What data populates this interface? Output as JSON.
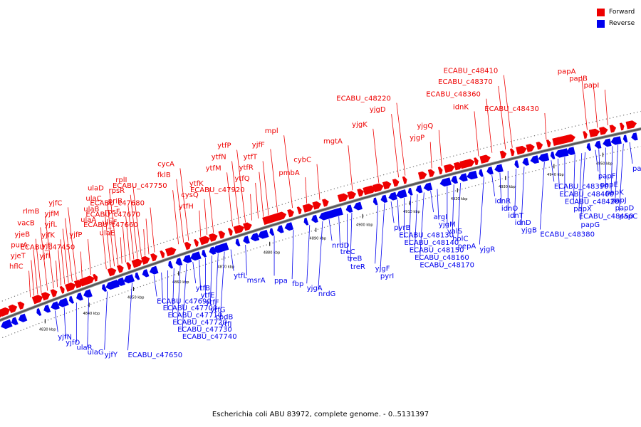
{
  "caption": "Escherichia coli ABU 83972, complete genome. - 0..5131397",
  "legend": {
    "forward": {
      "label": "Forward",
      "color": "#ee0000"
    },
    "reverse": {
      "label": "Reverse",
      "color": "#0000ee"
    }
  },
  "ticks": [
    "4830 kbp",
    "4840 kbp",
    "4850 kbp",
    "4860 kbp",
    "4870 kbp",
    "4880 kbp",
    "4890 kbp",
    "4900 kbp",
    "4910 kbp",
    "4920 kbp",
    "4930 kbp",
    "4940 kbp",
    "4950 kbp"
  ],
  "forward_genes": [
    {
      "name": "hflC",
      "t": 0.062
    },
    {
      "name": "yjeT",
      "t": 0.068
    },
    {
      "name": "purA",
      "t": 0.074
    },
    {
      "name": "yjeB",
      "t": 0.08
    },
    {
      "name": "vacB",
      "t": 0.09
    },
    {
      "name": "rlmB",
      "t": 0.1
    },
    {
      "name": "yjfI",
      "t": 0.106
    },
    {
      "name": "yjfJ",
      "t": 0.112
    },
    {
      "name": "yjfK",
      "t": 0.118
    },
    {
      "name": "yjfL",
      "t": 0.124
    },
    {
      "name": "yjfM",
      "t": 0.13
    },
    {
      "name": "yjfC",
      "t": 0.137
    },
    {
      "name": "ECABU_c47450",
      "t": 0.146
    },
    {
      "name": "yjfP",
      "t": 0.16
    },
    {
      "name": "ulaA",
      "t": 0.185
    },
    {
      "name": "ulaB",
      "t": 0.192
    },
    {
      "name": "ulaC",
      "t": 0.198
    },
    {
      "name": "ulaD",
      "t": 0.204
    },
    {
      "name": "ulaE",
      "t": 0.21
    },
    {
      "name": "ulaF",
      "t": 0.216
    },
    {
      "name": "rpsF",
      "t": 0.223
    },
    {
      "name": "priB",
      "t": 0.229
    },
    {
      "name": "rpsR",
      "t": 0.235
    },
    {
      "name": "rplI",
      "t": 0.241
    },
    {
      "name": "ECABU_c47660",
      "t": 0.247
    },
    {
      "name": "ECABU_c47670",
      "t": 0.253
    },
    {
      "name": "ECABU_c47680",
      "t": 0.262
    },
    {
      "name": "ECABU_c47750",
      "t": 0.3
    },
    {
      "name": "fklB",
      "t": 0.308
    },
    {
      "name": "cycA",
      "t": 0.316
    },
    {
      "name": "ytfH",
      "t": 0.335
    },
    {
      "name": "cysQ",
      "t": 0.345
    },
    {
      "name": "ytfK",
      "t": 0.355
    },
    {
      "name": "ytfM",
      "t": 0.385
    },
    {
      "name": "ytfN",
      "t": 0.395
    },
    {
      "name": "ytfP",
      "t": 0.405
    },
    {
      "name": "ECABU_c47920",
      "t": 0.415
    },
    {
      "name": "ytfQ",
      "t": 0.425
    },
    {
      "name": "ytfR",
      "t": 0.433
    },
    {
      "name": "ytfT",
      "t": 0.441
    },
    {
      "name": "yjfF",
      "t": 0.455
    },
    {
      "name": "mpl",
      "t": 0.478
    },
    {
      "name": "pmbA",
      "t": 0.5
    },
    {
      "name": "cybC",
      "t": 0.52
    },
    {
      "name": "mgtA",
      "t": 0.57
    },
    {
      "name": "yjgK",
      "t": 0.61
    },
    {
      "name": "yjgD",
      "t": 0.64
    },
    {
      "name": "ECABU_c48220",
      "t": 0.65
    },
    {
      "name": "yjgP",
      "t": 0.69
    },
    {
      "name": "yjgQ",
      "t": 0.705
    },
    {
      "name": "idnK",
      "t": 0.76
    },
    {
      "name": "ECABU_c48360",
      "t": 0.78
    },
    {
      "name": "ECABU_c48370",
      "t": 0.8
    },
    {
      "name": "ECABU_c48410",
      "t": 0.81
    },
    {
      "name": "ECABU_c48430",
      "t": 0.86
    },
    {
      "name": "papI",
      "t": 0.95
    },
    {
      "name": "papB",
      "t": 0.935
    },
    {
      "name": "papA",
      "t": 0.92
    }
  ],
  "reverse_genes": [
    {
      "name": "yjfN",
      "t": 0.09
    },
    {
      "name": "yjfO",
      "t": 0.105
    },
    {
      "name": "ulaR",
      "t": 0.125
    },
    {
      "name": "ulaG",
      "t": 0.145
    },
    {
      "name": "yjfY",
      "t": 0.175
    },
    {
      "name": "ECABU_c47650",
      "t": 0.215
    },
    {
      "name": "ECABU_c47690",
      "t": 0.25
    },
    {
      "name": "ECABU_c47700",
      "t": 0.262
    },
    {
      "name": "ECABU_c47710",
      "t": 0.272
    },
    {
      "name": "ECABU_c47720",
      "t": 0.282
    },
    {
      "name": "ECABU_c47730",
      "t": 0.292
    },
    {
      "name": "ECABU_c47740",
      "t": 0.302
    },
    {
      "name": "ytfB",
      "t": 0.312
    },
    {
      "name": "ytfE",
      "t": 0.322
    },
    {
      "name": "ytfF",
      "t": 0.332
    },
    {
      "name": "ytfG",
      "t": 0.342
    },
    {
      "name": "cpdB",
      "t": 0.352
    },
    {
      "name": "ytfJ",
      "t": 0.362
    },
    {
      "name": "ytfL",
      "t": 0.372
    },
    {
      "name": "msrA",
      "t": 0.395
    },
    {
      "name": "ppa",
      "t": 0.44
    },
    {
      "name": "fbp",
      "t": 0.47
    },
    {
      "name": "yjgA",
      "t": 0.495
    },
    {
      "name": "nrdG",
      "t": 0.515
    },
    {
      "name": "nrdD",
      "t": 0.525
    },
    {
      "name": "treC",
      "t": 0.54
    },
    {
      "name": "treB",
      "t": 0.553
    },
    {
      "name": "treR",
      "t": 0.56
    },
    {
      "name": "yjgF",
      "t": 0.6
    },
    {
      "name": "pyrI",
      "t": 0.61
    },
    {
      "name": "pyrB",
      "t": 0.62
    },
    {
      "name": "ECABU_c48130",
      "t": 0.63
    },
    {
      "name": "ECABU_c48140",
      "t": 0.64
    },
    {
      "name": "ECABU_c48150",
      "t": 0.65
    },
    {
      "name": "ECABU_c48160",
      "t": 0.66
    },
    {
      "name": "ECABU_c48170",
      "t": 0.67
    },
    {
      "name": "argI",
      "t": 0.68
    },
    {
      "name": "yjgM",
      "t": 0.69
    },
    {
      "name": "valS",
      "t": 0.705
    },
    {
      "name": "holC",
      "t": 0.715
    },
    {
      "name": "pepA",
      "t": 0.725
    },
    {
      "name": "yjgR",
      "t": 0.76
    },
    {
      "name": "idnR",
      "t": 0.772
    },
    {
      "name": "idnO",
      "t": 0.784
    },
    {
      "name": "idnT",
      "t": 0.796
    },
    {
      "name": "idnD",
      "t": 0.808
    },
    {
      "name": "yjgB",
      "t": 0.82
    },
    {
      "name": "ECABU_c48380",
      "t": 0.85
    },
    {
      "name": "ECABU_c48390",
      "t": 0.86
    },
    {
      "name": "ECABU_c48400",
      "t": 0.87
    },
    {
      "name": "ECABU_c48420",
      "t": 0.88
    },
    {
      "name": "papX",
      "t": 0.895
    },
    {
      "name": "ECABU_c48450",
      "t": 0.905
    },
    {
      "name": "papG",
      "t": 0.91
    },
    {
      "name": "papF",
      "t": 0.925
    },
    {
      "name": "papE",
      "t": 0.93
    },
    {
      "name": "papK",
      "t": 0.94
    },
    {
      "name": "papJ",
      "t": 0.95
    },
    {
      "name": "papD",
      "t": 0.958
    },
    {
      "name": "papC",
      "t": 0.966
    },
    {
      "name": "papH",
      "t": 0.975
    }
  ]
}
